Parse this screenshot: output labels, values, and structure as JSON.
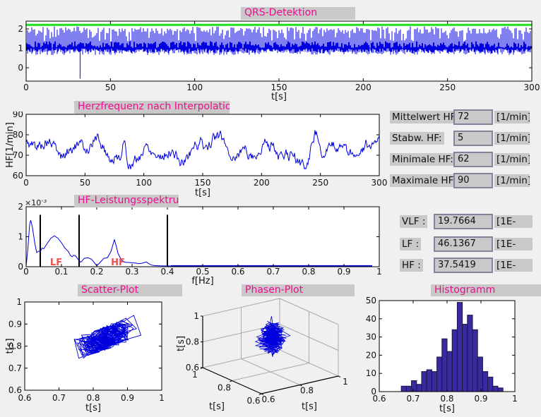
{
  "titles": {
    "qrs": "QRS-Detektion",
    "hr": "Herzfrequenz nach Interpolation",
    "spectrum": "HF-Leistungsspektrum",
    "scatter": "Scatter-Plot",
    "phase": "Phasen-Plot",
    "histogram": "Histogramm"
  },
  "hr_stats": [
    {
      "label": "Mittelwert HF:",
      "value": "72",
      "unit": "[1/min]"
    },
    {
      "label": "Stabw. HF:",
      "value": "5",
      "unit": "[1/min]"
    },
    {
      "label": "Minimale HF:",
      "value": "62",
      "unit": "[1/min]"
    },
    {
      "label": "Maximale HF:",
      "value": "90",
      "unit": "[1/min]"
    }
  ],
  "spectrum_stats": [
    {
      "label": "VLF :",
      "value": "19.7664",
      "unit": "[1E-"
    },
    {
      "label": "LF :",
      "value": "46.1367",
      "unit": "[1E-"
    },
    {
      "label": "HF :",
      "value": "37.5419",
      "unit": "[1E-"
    }
  ],
  "colors": {
    "background": "#f0f0f0",
    "titlebar_bg": "#c9c9c9",
    "title_text": "#ec0e8c",
    "signal_blue": "#0000e0",
    "threshold_green": "#1ee11e",
    "hist_fill": "#3a2aa0",
    "hist_edge": "#181840",
    "band_label_red": "#f25050",
    "grid3d_gray": "#aaaaaa",
    "field_bg": "#c9c9c9",
    "field_border": "#83839c"
  },
  "chart_data": [
    {
      "id": "qrs",
      "type": "line",
      "title": "QRS-Detektion",
      "xlabel": "t[s]",
      "xlim": [
        0,
        300
      ],
      "ylim": [
        -0.69,
        2.4
      ],
      "xticks": [
        [
          0,
          "0"
        ],
        [
          50,
          "50"
        ],
        [
          100,
          "100"
        ],
        [
          150,
          "150"
        ],
        [
          200,
          "200"
        ],
        [
          250,
          "250"
        ],
        [
          300,
          "300"
        ]
      ],
      "yticks": [
        [
          0,
          "0"
        ],
        [
          1,
          "1"
        ],
        [
          2,
          "2"
        ]
      ],
      "threshold": {
        "value": 2.21,
        "color": "#1ee11e"
      },
      "signal": {
        "kind": "synthetic-ecg",
        "seed": 7,
        "baseline": 1.0,
        "spike_top_range": [
          1.75,
          2.14
        ],
        "spike_bottom_range": [
          0.66,
          0.96
        ],
        "downspikes": [
          [
            0,
            -0.69
          ],
          [
            32,
            -0.56
          ],
          [
            300,
            -0.4
          ]
        ],
        "color": "#0000e0"
      }
    },
    {
      "id": "hr",
      "type": "line",
      "title": "Herzfrequenz nach Interpolation",
      "xlabel": "t[s]",
      "ylabel": "HF[1/min]",
      "xlim": [
        0,
        300
      ],
      "ylim": [
        60,
        90
      ],
      "xticks": [
        [
          0,
          "0"
        ],
        [
          50,
          "50"
        ],
        [
          100,
          "100"
        ],
        [
          150,
          "150"
        ],
        [
          200,
          "200"
        ],
        [
          250,
          "250"
        ],
        [
          300,
          "300"
        ]
      ],
      "yticks": [
        [
          60,
          "60"
        ],
        [
          70,
          "70"
        ],
        [
          80,
          "80"
        ],
        [
          90,
          "90"
        ]
      ],
      "series": {
        "kind": "ar-heart-rate",
        "seed": 5,
        "mean": 72,
        "sd": 5,
        "min": 62,
        "max": 90,
        "peaks_s": [
          83,
          245
        ],
        "color": "#0000dd"
      }
    },
    {
      "id": "spectrum",
      "type": "line",
      "title": "HF-Leistungsspektrum",
      "xlabel": "f[Hz]",
      "multiplier_base": "×10",
      "multiplier_exp": "-3",
      "xlim": [
        0,
        1
      ],
      "ylim": [
        0,
        2
      ],
      "xticks": [
        [
          0,
          "0"
        ],
        [
          0.1,
          "0.1"
        ],
        [
          0.2,
          "0.2"
        ],
        [
          0.3,
          "0.3"
        ],
        [
          0.4,
          "0.4"
        ],
        [
          0.5,
          "0.5"
        ],
        [
          0.6,
          "0.6"
        ],
        [
          0.7,
          "0.7"
        ],
        [
          0.8,
          "0.8"
        ],
        [
          0.9,
          "0.9"
        ],
        [
          1,
          "1"
        ]
      ],
      "yticks": [
        [
          0,
          "0"
        ],
        [
          1,
          "1"
        ],
        [
          2,
          "2"
        ]
      ],
      "band_lines_hz": [
        0.04,
        0.15,
        0.4
      ],
      "band_labels": [
        {
          "text": "LF",
          "f": 0.085
        },
        {
          "text": "HF",
          "f": 0.26
        }
      ],
      "points": [
        [
          0,
          0.02
        ],
        [
          0.005,
          0.6
        ],
        [
          0.01,
          1.42
        ],
        [
          0.013,
          1.55
        ],
        [
          0.018,
          1.3
        ],
        [
          0.025,
          0.75
        ],
        [
          0.03,
          0.47
        ],
        [
          0.035,
          0.52
        ],
        [
          0.04,
          0.5
        ],
        [
          0.045,
          0.62
        ],
        [
          0.05,
          0.6
        ],
        [
          0.06,
          0.78
        ],
        [
          0.07,
          0.95
        ],
        [
          0.08,
          1.03
        ],
        [
          0.09,
          0.95
        ],
        [
          0.1,
          0.8
        ],
        [
          0.11,
          0.62
        ],
        [
          0.12,
          0.5
        ],
        [
          0.125,
          0.38
        ],
        [
          0.13,
          0.33
        ],
        [
          0.135,
          0.38
        ],
        [
          0.14,
          0.36
        ],
        [
          0.15,
          0.2
        ],
        [
          0.155,
          0.15
        ],
        [
          0.165,
          0.28
        ],
        [
          0.175,
          0.3
        ],
        [
          0.185,
          0.25
        ],
        [
          0.19,
          0.18
        ],
        [
          0.2,
          0.03
        ],
        [
          0.21,
          0.15
        ],
        [
          0.22,
          0.28
        ],
        [
          0.23,
          0.3
        ],
        [
          0.24,
          0.5
        ],
        [
          0.25,
          0.9
        ],
        [
          0.255,
          0.7
        ],
        [
          0.26,
          0.45
        ],
        [
          0.27,
          0.22
        ],
        [
          0.28,
          0.15
        ],
        [
          0.29,
          0.14
        ],
        [
          0.3,
          0.13
        ],
        [
          0.31,
          0.12
        ],
        [
          0.32,
          0.1
        ],
        [
          0.33,
          0.12
        ],
        [
          0.34,
          0.16
        ],
        [
          0.35,
          0.08
        ],
        [
          0.36,
          0.04
        ],
        [
          0.38,
          0.03
        ],
        [
          0.4,
          0.025
        ],
        [
          0.45,
          0.022
        ],
        [
          0.6,
          0.022
        ],
        [
          0.8,
          0.022
        ],
        [
          0.98,
          0.022
        ]
      ]
    },
    {
      "id": "scatter",
      "type": "scatter-line",
      "title": "Scatter-Plot",
      "xlabel": "t[s]",
      "ylabel": "t[s]",
      "xlim": [
        0.6,
        1
      ],
      "ylim": [
        0.6,
        1
      ],
      "xticks": [
        [
          0.6,
          "0.6"
        ],
        [
          0.7,
          "0.7"
        ],
        [
          0.8,
          "0.8"
        ],
        [
          0.9,
          "0.9"
        ],
        [
          1,
          "1"
        ]
      ],
      "yticks": [
        [
          0.6,
          "0.6"
        ],
        [
          0.7,
          "0.7"
        ],
        [
          0.8,
          "0.8"
        ],
        [
          0.9,
          "0.9"
        ],
        [
          1,
          "1"
        ]
      ],
      "series": {
        "kind": "rr-poincare",
        "seed": 11,
        "n": 330,
        "ar": 0.6,
        "step": 0.11,
        "mean_s": 0.838,
        "range_s": [
          0.667,
          0.958
        ],
        "color": "#0000dd"
      }
    },
    {
      "id": "phase",
      "type": "line3d",
      "title": "Phasen-Plot",
      "xlabel": "t[s]",
      "ylabel": "t[s]",
      "zlabel": "t[s]",
      "xlim": [
        0.6,
        1
      ],
      "ylim": [
        0.6,
        1
      ],
      "zlim": [
        0.6,
        1
      ],
      "xticks": [
        [
          0.6,
          "0.6"
        ],
        [
          0.8,
          "0.8"
        ],
        [
          1,
          "1"
        ]
      ],
      "yticks": [
        [
          0.6,
          "0.6"
        ],
        [
          0.8,
          "0.8"
        ],
        [
          1,
          "1"
        ]
      ],
      "zticks": [
        [
          0.6,
          "0.6"
        ],
        [
          0.8,
          "0.8"
        ],
        [
          1,
          "1"
        ]
      ],
      "series": {
        "kind": "rr-delay-embedding",
        "seed": 11,
        "color": "#0000dd"
      }
    },
    {
      "id": "histogram",
      "type": "bar",
      "title": "Histogramm",
      "xlabel": "t[s]",
      "xlim": [
        0.6,
        1
      ],
      "ylim": [
        0,
        50
      ],
      "xticks": [
        [
          0.6,
          "0.6"
        ],
        [
          0.7,
          "0.7"
        ],
        [
          0.8,
          "0.8"
        ],
        [
          0.9,
          "0.9"
        ],
        [
          1,
          "1"
        ]
      ],
      "yticks": [
        [
          0,
          "0"
        ],
        [
          10,
          "10"
        ],
        [
          20,
          "20"
        ],
        [
          30,
          "30"
        ],
        [
          40,
          "40"
        ],
        [
          50,
          "50"
        ]
      ],
      "bin_start": 0.665,
      "bin_width": 0.015,
      "values": [
        3,
        3,
        6,
        4,
        11,
        12,
        11,
        19,
        29,
        22,
        34,
        49,
        37,
        42,
        34,
        19,
        11,
        8,
        3,
        2
      ],
      "fill": "#3a2aa0",
      "edge": "#181840"
    }
  ]
}
